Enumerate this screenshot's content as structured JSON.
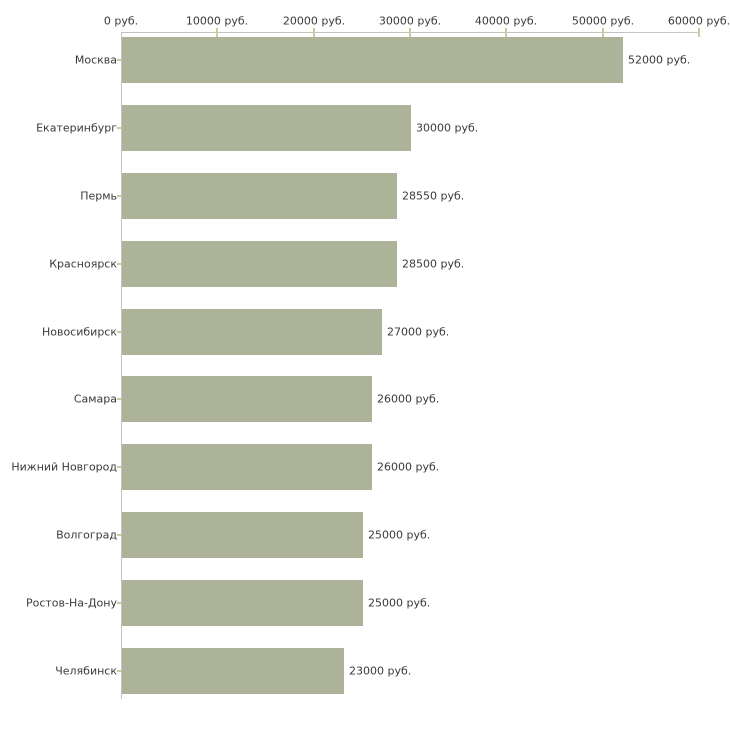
{
  "chart_data": {
    "type": "bar",
    "orientation": "horizontal",
    "title": "",
    "xlabel": "",
    "ylabel": "",
    "grid": false,
    "legend": null,
    "unit": "руб.",
    "categories": [
      "Москва",
      "Екатеринбург",
      "Пермь",
      "Красноярск",
      "Новосибирск",
      "Самара",
      "Нижний Новгород",
      "Волгоград",
      "Ростов-На-Дону",
      "Челябинск"
    ],
    "values": [
      52000,
      30000,
      28550,
      28500,
      27000,
      26000,
      26000,
      25000,
      25000,
      23000
    ],
    "value_labels": [
      "52000 руб.",
      "30000 руб.",
      "28550 руб.",
      "28500 руб.",
      "27000 руб.",
      "26000 руб.",
      "26000 руб.",
      "25000 руб.",
      "25000 руб.",
      "23000 руб."
    ],
    "xlim": [
      0,
      60000
    ],
    "x_ticks": [
      0,
      10000,
      20000,
      30000,
      40000,
      50000,
      60000
    ],
    "x_tick_labels": [
      "0 руб.",
      "10000 руб.",
      "20000 руб.",
      "30000 руб.",
      "40000 руб.",
      "50000 руб.",
      "60000 руб."
    ],
    "colors": {
      "bar": "#adb399",
      "axis_line": "#c3c3c3",
      "tick_mark": "#c8cc9e",
      "text": "#3a3a3a",
      "background": "#ffffff"
    }
  }
}
